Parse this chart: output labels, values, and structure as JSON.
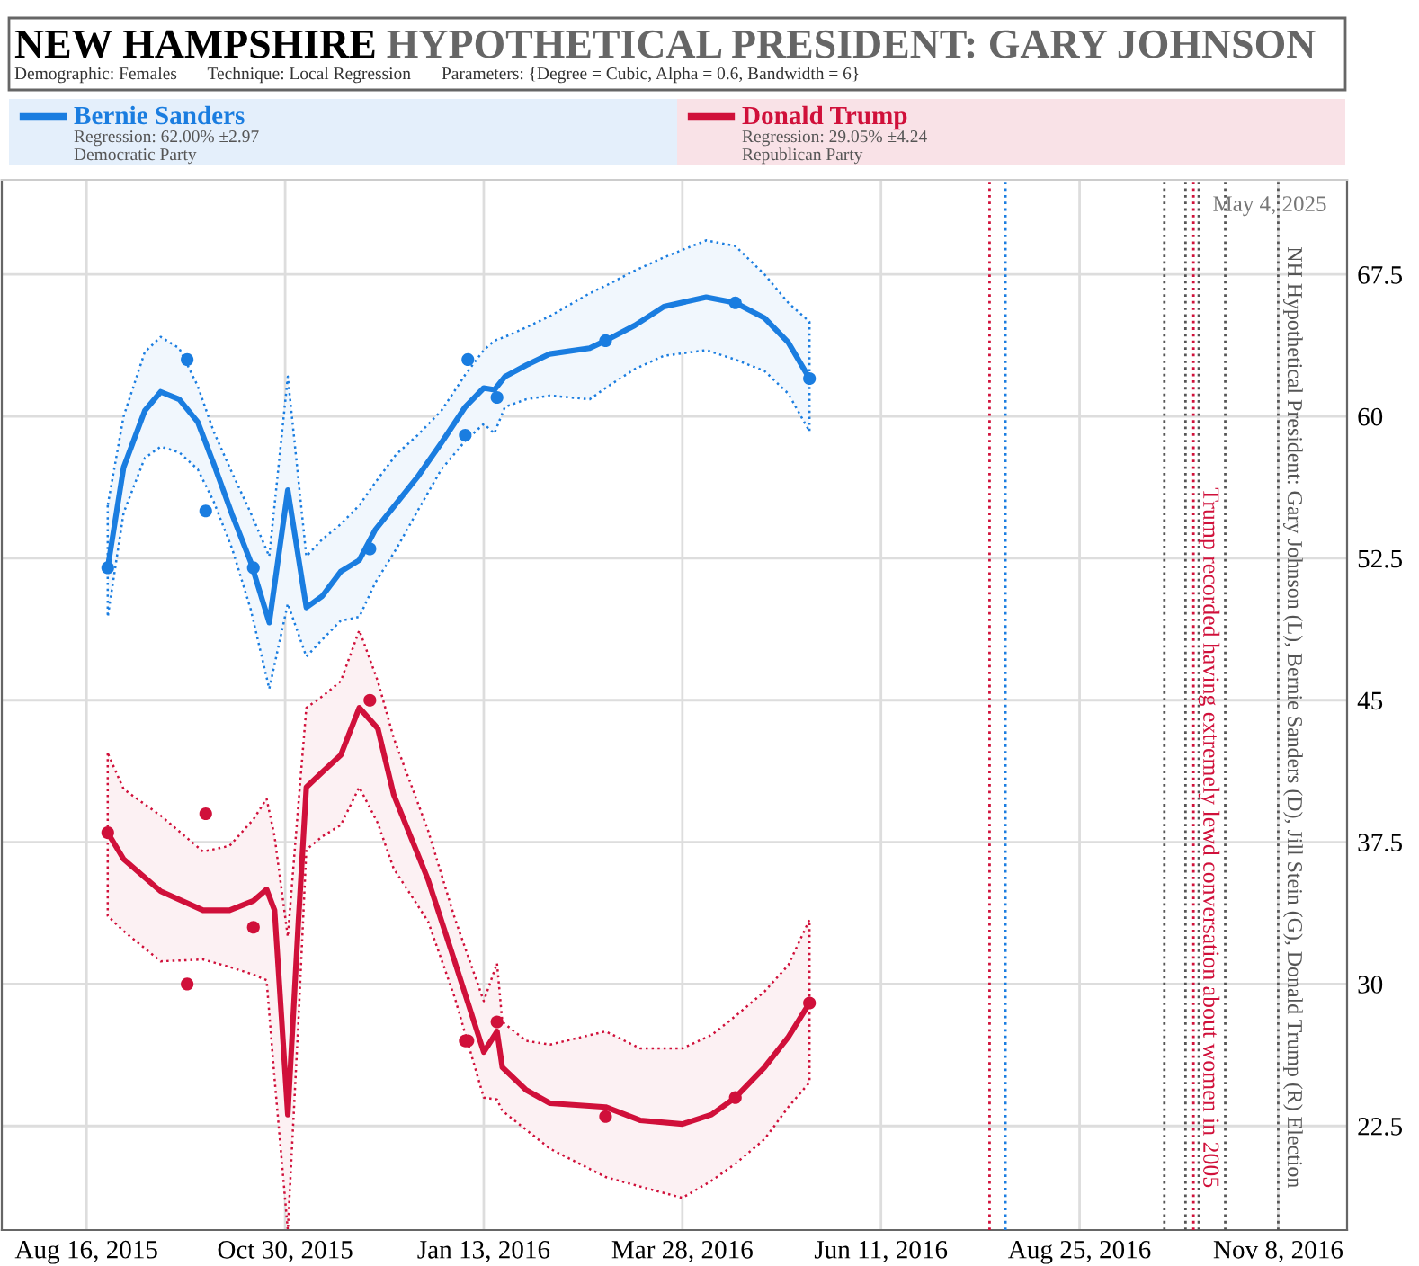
{
  "chart_data": {
    "type": "line",
    "title": "NEW HAMPSHIRE",
    "subtitle": "HYPOTHETICAL PRESIDENT: GARY JOHNSON",
    "annotations": [
      "Demographic: Females",
      "Technique: Local Regression",
      "Parameters: {Degree = Cubic, Alpha = 0.6, Bandwidth = 6}",
      "May 4, 2025",
      "Regression: 62.00% ±2.97",
      "Democratic Party",
      "Regression: 29.05% ±4.24",
      "Republican Party"
    ],
    "xlim": [
      "2015-07-15",
      "2016-12-04"
    ],
    "xticks": [
      {
        "value": "2015-08-16",
        "label": "Aug 16, 2015"
      },
      {
        "value": "2015-10-30",
        "label": "Oct 30, 2015"
      },
      {
        "value": "2016-01-13",
        "label": "Jan 13, 2016"
      },
      {
        "value": "2016-03-28",
        "label": "Mar 28, 2016"
      },
      {
        "value": "2016-06-11",
        "label": "Jun 11, 2016"
      },
      {
        "value": "2016-08-25",
        "label": "Aug 25, 2016"
      },
      {
        "value": "2016-11-08",
        "label": "Nov 8, 2016"
      }
    ],
    "ylim": [
      17,
      72.5
    ],
    "yticks": [
      22.5,
      30,
      37.5,
      45,
      52.5,
      60,
      67.5
    ],
    "grid": true,
    "legend": "top",
    "series": [
      {
        "name": "Bernie Sanders",
        "color": "#1a7de0",
        "marker": "none",
        "x": [
          "2015-08-24",
          "2015-08-30",
          "2015-09-07",
          "2015-09-13",
          "2015-09-20",
          "2015-09-27",
          "2015-10-03",
          "2015-10-10",
          "2015-10-17",
          "2015-10-24",
          "2015-10-31",
          "2015-11-07",
          "2015-11-13",
          "2015-11-20",
          "2015-11-27",
          "2015-12-03",
          "2015-12-11",
          "2015-12-19",
          "2015-12-28",
          "2016-01-06",
          "2016-01-13",
          "2016-01-17",
          "2016-01-21",
          "2016-01-29",
          "2016-02-07",
          "2016-02-22",
          "2016-02-28",
          "2016-03-10",
          "2016-03-21",
          "2016-04-06",
          "2016-04-17",
          "2016-04-28",
          "2016-05-07",
          "2016-05-15"
        ],
        "values": [
          52.0,
          57.3,
          60.3,
          61.3,
          60.9,
          59.7,
          57.5,
          54.8,
          52.3,
          49.1,
          56.1,
          49.9,
          50.5,
          51.8,
          52.4,
          54.0,
          55.4,
          56.8,
          58.6,
          60.5,
          61.5,
          61.4,
          62.1,
          62.7,
          63.3,
          63.6,
          64.0,
          64.8,
          65.8,
          66.3,
          66.0,
          65.2,
          63.9,
          62.0
        ],
        "upper": [
          55.3,
          60.0,
          63.4,
          64.2,
          63.6,
          61.6,
          59.2,
          57.0,
          54.9,
          52.6,
          62.1,
          52.6,
          53.5,
          54.3,
          55.3,
          56.5,
          58.0,
          59.0,
          60.3,
          62.2,
          63.5,
          64.0,
          64.2,
          64.7,
          65.3,
          66.5,
          66.9,
          67.7,
          68.4,
          69.3,
          69.0,
          67.5,
          66.0,
          65.0
        ],
        "lower": [
          49.4,
          54.9,
          57.8,
          58.4,
          58.1,
          57.2,
          55.5,
          53.0,
          49.8,
          45.6,
          50.1,
          47.3,
          48.2,
          49.2,
          49.4,
          51.2,
          53.0,
          55.0,
          57.2,
          58.7,
          59.6,
          59.1,
          60.5,
          60.9,
          61.1,
          60.9,
          61.5,
          62.5,
          63.2,
          63.5,
          63.0,
          62.4,
          61.2,
          59.2
        ]
      },
      {
        "type": "scatter",
        "color": "#1a7de0",
        "marker": "circle",
        "x": [
          "2015-08-24",
          "2015-09-23",
          "2015-09-30",
          "2015-10-18",
          "2015-12-01",
          "2016-01-06",
          "2016-01-07",
          "2016-01-18",
          "2016-02-28",
          "2016-04-17",
          "2016-05-15"
        ],
        "values": [
          52,
          63,
          55,
          52,
          53,
          59,
          63,
          61,
          64,
          66,
          62
        ]
      },
      {
        "name": "Donald Trump",
        "color": "#d0103a",
        "marker": "none",
        "x": [
          "2015-08-24",
          "2015-08-30",
          "2015-09-13",
          "2015-09-29",
          "2015-10-09",
          "2015-10-18",
          "2015-10-23",
          "2015-10-26",
          "2015-10-31",
          "2015-11-04",
          "2015-11-07",
          "2015-11-13",
          "2015-11-20",
          "2015-11-27",
          "2015-12-04",
          "2015-12-10",
          "2015-12-23",
          "2016-01-02",
          "2016-01-13",
          "2016-01-18",
          "2016-01-20",
          "2016-01-29",
          "2016-02-07",
          "2016-02-28",
          "2016-03-12",
          "2016-03-28",
          "2016-04-08",
          "2016-04-17",
          "2016-04-28",
          "2016-05-07",
          "2016-05-15"
        ],
        "values": [
          38.0,
          36.6,
          34.9,
          33.9,
          33.9,
          34.4,
          35.0,
          33.9,
          23.1,
          33.3,
          40.4,
          41.2,
          42.1,
          44.6,
          43.5,
          40.0,
          35.5,
          31.2,
          26.4,
          27.5,
          25.6,
          24.4,
          23.7,
          23.5,
          22.8,
          22.6,
          23.1,
          24.0,
          25.6,
          27.2,
          29.0
        ],
        "upper": [
          42.2,
          40.3,
          38.9,
          37.0,
          37.3,
          38.7,
          39.8,
          37.8,
          32.5,
          39.5,
          44.6,
          45.2,
          46.0,
          48.7,
          46.0,
          43.0,
          38.1,
          33.5,
          29.1,
          31.1,
          28.0,
          27.0,
          26.8,
          27.5,
          26.6,
          26.6,
          27.3,
          28.3,
          29.6,
          31.0,
          33.4
        ],
        "lower": [
          33.6,
          32.8,
          31.2,
          31.3,
          30.9,
          30.5,
          30.2,
          25.0,
          17.0,
          28.0,
          37.1,
          37.8,
          38.4,
          40.4,
          38.5,
          36.1,
          33.3,
          29.3,
          24.0,
          23.9,
          23.3,
          22.3,
          21.3,
          19.8,
          19.3,
          18.7,
          19.6,
          20.5,
          21.8,
          23.5,
          24.8
        ]
      },
      {
        "type": "scatter",
        "color": "#d0103a",
        "marker": "circle",
        "x": [
          "2015-08-24",
          "2015-09-23",
          "2015-09-30",
          "2015-10-18",
          "2015-12-01",
          "2016-01-06",
          "2016-01-07",
          "2016-01-18",
          "2016-02-28",
          "2016-04-17",
          "2016-05-15"
        ],
        "values": [
          38,
          30,
          39,
          33,
          45,
          27,
          27,
          28,
          23,
          24,
          29
        ]
      }
    ],
    "ref_lines": [
      {
        "axis": "x",
        "value": "2016-07-22",
        "label": null,
        "color": "#d0103a",
        "line_style": "dotted"
      },
      {
        "axis": "x",
        "value": "2016-07-28",
        "label": null,
        "color": "#1a7de0",
        "line_style": "dotted"
      },
      {
        "axis": "x",
        "value": "2016-09-26",
        "label": null,
        "color": "#555555",
        "line_style": "dotted"
      },
      {
        "axis": "x",
        "value": "2016-10-04",
        "label": null,
        "color": "#555555",
        "line_style": "dotted"
      },
      {
        "axis": "x",
        "value": "2016-10-07",
        "label": "Trump recorded having extremely lewd conversation about women in 2005",
        "color": "#d0103a",
        "line_style": "dotted"
      },
      {
        "axis": "x",
        "value": "2016-10-09",
        "label": null,
        "color": "#555555",
        "line_style": "dotted"
      },
      {
        "axis": "x",
        "value": "2016-10-19",
        "label": null,
        "color": "#555555",
        "line_style": "dotted"
      },
      {
        "axis": "x",
        "value": "2016-11-08",
        "label": "NH Hypothetical President: Gary Johnson (L), Bernie Sanders (D), Jill Stein (G), Donald Trump (R) Election",
        "color": "#555555",
        "line_style": "dotted"
      }
    ]
  }
}
